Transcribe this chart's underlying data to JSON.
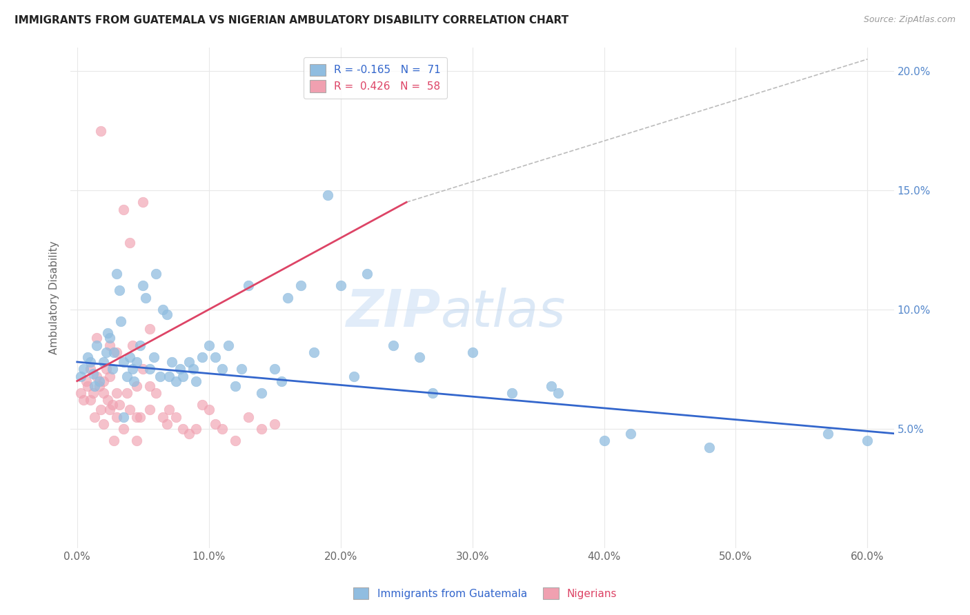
{
  "title": "IMMIGRANTS FROM GUATEMALA VS NIGERIAN AMBULATORY DISABILITY CORRELATION CHART",
  "source": "Source: ZipAtlas.com",
  "ylabel": "Ambulatory Disability",
  "ylim": [
    0,
    21
  ],
  "xlim": [
    -0.5,
    62
  ],
  "ytick_vals": [
    5,
    10,
    15,
    20
  ],
  "ytick_labels": [
    "5.0%",
    "10.0%",
    "15.0%",
    "20.0%"
  ],
  "xtick_vals": [
    0,
    10,
    20,
    30,
    40,
    50,
    60
  ],
  "xtick_labels": [
    "0.0%",
    "10.0%",
    "20.0%",
    "30.0%",
    "40.0%",
    "50.0%",
    "60.0%"
  ],
  "legend_blue_label": "R = -0.165   N =  71",
  "legend_pink_label": "R =  0.426   N =  58",
  "bottom_legend_blue": "Immigrants from Guatemala",
  "bottom_legend_pink": "Nigerians",
  "blue_scatter": [
    [
      0.3,
      7.2
    ],
    [
      0.5,
      7.5
    ],
    [
      0.8,
      8.0
    ],
    [
      1.0,
      7.8
    ],
    [
      1.2,
      7.3
    ],
    [
      1.3,
      6.8
    ],
    [
      1.5,
      8.5
    ],
    [
      1.7,
      7.0
    ],
    [
      2.0,
      7.8
    ],
    [
      2.2,
      8.2
    ],
    [
      2.3,
      9.0
    ],
    [
      2.5,
      8.8
    ],
    [
      2.7,
      7.5
    ],
    [
      2.8,
      8.2
    ],
    [
      3.0,
      11.5
    ],
    [
      3.2,
      10.8
    ],
    [
      3.3,
      9.5
    ],
    [
      3.5,
      7.8
    ],
    [
      3.8,
      7.2
    ],
    [
      4.0,
      8.0
    ],
    [
      4.2,
      7.5
    ],
    [
      4.3,
      7.0
    ],
    [
      4.5,
      7.8
    ],
    [
      4.8,
      8.5
    ],
    [
      5.0,
      11.0
    ],
    [
      5.2,
      10.5
    ],
    [
      5.5,
      7.5
    ],
    [
      5.8,
      8.0
    ],
    [
      6.0,
      11.5
    ],
    [
      6.3,
      7.2
    ],
    [
      6.5,
      10.0
    ],
    [
      6.8,
      9.8
    ],
    [
      7.0,
      7.2
    ],
    [
      7.2,
      7.8
    ],
    [
      7.5,
      7.0
    ],
    [
      7.8,
      7.5
    ],
    [
      8.0,
      7.2
    ],
    [
      8.5,
      7.8
    ],
    [
      8.8,
      7.5
    ],
    [
      9.0,
      7.0
    ],
    [
      9.5,
      8.0
    ],
    [
      10.0,
      8.5
    ],
    [
      10.5,
      8.0
    ],
    [
      11.0,
      7.5
    ],
    [
      11.5,
      8.5
    ],
    [
      12.0,
      6.8
    ],
    [
      12.5,
      7.5
    ],
    [
      13.0,
      11.0
    ],
    [
      14.0,
      6.5
    ],
    [
      15.0,
      7.5
    ],
    [
      15.5,
      7.0
    ],
    [
      16.0,
      10.5
    ],
    [
      17.0,
      11.0
    ],
    [
      18.0,
      8.2
    ],
    [
      19.0,
      14.8
    ],
    [
      20.0,
      11.0
    ],
    [
      21.0,
      7.2
    ],
    [
      22.0,
      11.5
    ],
    [
      24.0,
      8.5
    ],
    [
      26.0,
      8.0
    ],
    [
      27.0,
      6.5
    ],
    [
      30.0,
      8.2
    ],
    [
      33.0,
      6.5
    ],
    [
      36.0,
      6.8
    ],
    [
      36.5,
      6.5
    ],
    [
      40.0,
      4.5
    ],
    [
      42.0,
      4.8
    ],
    [
      48.0,
      4.2
    ],
    [
      57.0,
      4.8
    ],
    [
      60.0,
      4.5
    ],
    [
      3.5,
      5.5
    ]
  ],
  "pink_scatter": [
    [
      0.3,
      6.5
    ],
    [
      0.5,
      6.2
    ],
    [
      0.7,
      7.0
    ],
    [
      0.8,
      6.8
    ],
    [
      1.0,
      7.5
    ],
    [
      1.0,
      6.2
    ],
    [
      1.2,
      6.5
    ],
    [
      1.3,
      5.5
    ],
    [
      1.5,
      8.8
    ],
    [
      1.5,
      7.2
    ],
    [
      1.7,
      6.8
    ],
    [
      1.8,
      5.8
    ],
    [
      2.0,
      7.0
    ],
    [
      2.0,
      5.2
    ],
    [
      2.0,
      6.5
    ],
    [
      2.2,
      7.5
    ],
    [
      2.3,
      6.2
    ],
    [
      2.5,
      7.2
    ],
    [
      2.5,
      5.8
    ],
    [
      2.5,
      8.5
    ],
    [
      2.7,
      6.0
    ],
    [
      3.0,
      8.2
    ],
    [
      3.0,
      6.5
    ],
    [
      3.0,
      5.5
    ],
    [
      3.2,
      6.0
    ],
    [
      3.5,
      14.2
    ],
    [
      3.5,
      5.0
    ],
    [
      3.8,
      6.5
    ],
    [
      4.0,
      12.8
    ],
    [
      4.0,
      5.8
    ],
    [
      4.2,
      8.5
    ],
    [
      4.5,
      6.8
    ],
    [
      4.5,
      5.5
    ],
    [
      4.8,
      5.5
    ],
    [
      5.0,
      14.5
    ],
    [
      5.0,
      7.5
    ],
    [
      5.5,
      9.2
    ],
    [
      5.5,
      6.8
    ],
    [
      5.5,
      5.8
    ],
    [
      6.0,
      6.5
    ],
    [
      6.5,
      5.5
    ],
    [
      6.8,
      5.2
    ],
    [
      7.0,
      5.8
    ],
    [
      7.5,
      5.5
    ],
    [
      8.0,
      5.0
    ],
    [
      8.5,
      4.8
    ],
    [
      9.0,
      5.0
    ],
    [
      9.5,
      6.0
    ],
    [
      10.0,
      5.8
    ],
    [
      10.5,
      5.2
    ],
    [
      11.0,
      5.0
    ],
    [
      12.0,
      4.5
    ],
    [
      13.0,
      5.5
    ],
    [
      14.0,
      5.0
    ],
    [
      15.0,
      5.2
    ],
    [
      1.8,
      17.5
    ],
    [
      2.8,
      4.5
    ],
    [
      4.5,
      4.5
    ]
  ],
  "blue_line": {
    "x0": 0,
    "x1": 62,
    "y0": 7.8,
    "y1": 4.8
  },
  "pink_line": {
    "x0": 0,
    "x1": 25,
    "y0": 7.0,
    "y1": 14.5
  },
  "dashed_line": {
    "x0": 25,
    "x1": 60,
    "y0": 14.5,
    "y1": 20.5
  },
  "blue_dot_color": "#90bde0",
  "pink_dot_color": "#f0a0b0",
  "blue_edge_color": "#90bde0",
  "pink_edge_color": "#f0a0b0",
  "blue_line_color": "#3366cc",
  "pink_line_color": "#dd4466",
  "dashed_color": "#bbbbbb",
  "legend_blue_color": "#3366cc",
  "legend_pink_color": "#dd4466",
  "grid_color": "#e8e8e8",
  "bg_color": "#ffffff",
  "title_color": "#222222",
  "source_color": "#999999",
  "ylabel_color": "#666666",
  "tick_color": "#666666",
  "right_tick_color": "#5588cc"
}
